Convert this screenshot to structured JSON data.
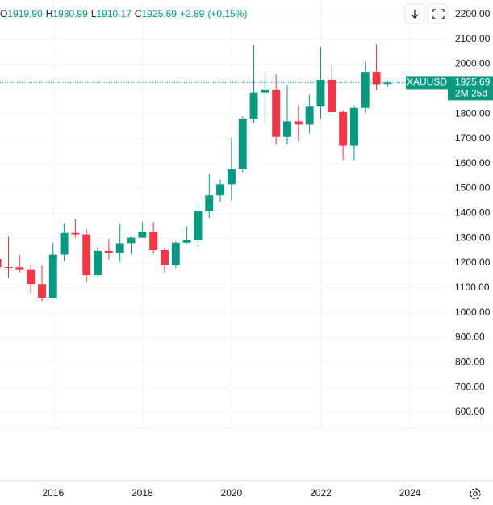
{
  "chart_data": {
    "type": "candlestick",
    "header": {
      "labels": [
        "O",
        "H",
        "L",
        "C"
      ],
      "values": [
        "1919.90",
        "1930.99",
        "1910.17",
        "1925.69"
      ],
      "change": "+2.89",
      "change_pct": "(+0.15%)"
    },
    "symbol": "XAUUSD",
    "last_price": {
      "value": 1925.69,
      "label": "1925.69"
    },
    "countdown": "2M 25d",
    "up_color": "#089981",
    "down_color": "#f23645",
    "grid": true,
    "ylim": [
      538,
      2258
    ],
    "yticks": [
      {
        "value": 600,
        "label": "600.00"
      },
      {
        "value": 700,
        "label": "700.00"
      },
      {
        "value": 800,
        "label": "800.00"
      },
      {
        "value": 900,
        "label": "900.00"
      },
      {
        "value": 1000,
        "label": "1000.00"
      },
      {
        "value": 1100,
        "label": "1100.00"
      },
      {
        "value": 1200,
        "label": "1200.00"
      },
      {
        "value": 1300,
        "label": "1300.00"
      },
      {
        "value": 1400,
        "label": "1400.00"
      },
      {
        "value": 1500,
        "label": "1500.00"
      },
      {
        "value": 1600,
        "label": "1600.00"
      },
      {
        "value": 1700,
        "label": "1700.00"
      },
      {
        "value": 1800,
        "label": "1800.00"
      },
      {
        "value": 1900,
        "label": "1900.00"
      },
      {
        "value": 2000,
        "label": "2000.00"
      },
      {
        "value": 2100,
        "label": "2100.00"
      },
      {
        "value": 2200,
        "label": "2200.00"
      }
    ],
    "xlim": [
      2014.81,
      2024.85
    ],
    "xticks": [
      2016,
      2018,
      2020,
      2022,
      2024
    ],
    "candles": [
      {
        "x": 2014.75,
        "open": 1216,
        "high": 1255,
        "low": 1132,
        "close": 1184
      },
      {
        "x": 2015.0,
        "open": 1184,
        "high": 1307,
        "low": 1142,
        "close": 1183
      },
      {
        "x": 2015.25,
        "open": 1183,
        "high": 1232,
        "low": 1162,
        "close": 1172
      },
      {
        "x": 2015.5,
        "open": 1172,
        "high": 1191,
        "low": 1077,
        "close": 1115
      },
      {
        "x": 2015.75,
        "open": 1115,
        "high": 1191,
        "low": 1046,
        "close": 1060
      },
      {
        "x": 2016.0,
        "open": 1060,
        "high": 1282,
        "low": 1061,
        "close": 1234
      },
      {
        "x": 2016.25,
        "open": 1234,
        "high": 1358,
        "low": 1208,
        "close": 1321
      },
      {
        "x": 2016.5,
        "open": 1321,
        "high": 1375,
        "low": 1302,
        "close": 1315
      },
      {
        "x": 2016.75,
        "open": 1315,
        "high": 1337,
        "low": 1123,
        "close": 1151
      },
      {
        "x": 2017.0,
        "open": 1151,
        "high": 1264,
        "low": 1146,
        "close": 1249
      },
      {
        "x": 2017.25,
        "open": 1249,
        "high": 1296,
        "low": 1214,
        "close": 1242
      },
      {
        "x": 2017.5,
        "open": 1242,
        "high": 1357,
        "low": 1204,
        "close": 1280
      },
      {
        "x": 2017.75,
        "open": 1280,
        "high": 1306,
        "low": 1236,
        "close": 1302
      },
      {
        "x": 2018.0,
        "open": 1302,
        "high": 1366,
        "low": 1302,
        "close": 1325
      },
      {
        "x": 2018.25,
        "open": 1325,
        "high": 1365,
        "low": 1238,
        "close": 1252
      },
      {
        "x": 2018.5,
        "open": 1252,
        "high": 1263,
        "low": 1160,
        "close": 1192
      },
      {
        "x": 2018.75,
        "open": 1192,
        "high": 1287,
        "low": 1180,
        "close": 1282
      },
      {
        "x": 2019.0,
        "open": 1282,
        "high": 1346,
        "low": 1276,
        "close": 1292
      },
      {
        "x": 2019.25,
        "open": 1292,
        "high": 1439,
        "low": 1266,
        "close": 1409
      },
      {
        "x": 2019.5,
        "open": 1409,
        "high": 1557,
        "low": 1381,
        "close": 1472
      },
      {
        "x": 2019.75,
        "open": 1472,
        "high": 1535,
        "low": 1445,
        "close": 1517
      },
      {
        "x": 2020.0,
        "open": 1517,
        "high": 1703,
        "low": 1451,
        "close": 1577
      },
      {
        "x": 2020.25,
        "open": 1577,
        "high": 1789,
        "low": 1566,
        "close": 1781
      },
      {
        "x": 2020.5,
        "open": 1781,
        "high": 2075,
        "low": 1764,
        "close": 1886
      },
      {
        "x": 2020.75,
        "open": 1886,
        "high": 1966,
        "low": 1764,
        "close": 1898
      },
      {
        "x": 2021.0,
        "open": 1898,
        "high": 1959,
        "low": 1676,
        "close": 1707
      },
      {
        "x": 2021.25,
        "open": 1707,
        "high": 1916,
        "low": 1677,
        "close": 1770
      },
      {
        "x": 2021.5,
        "open": 1770,
        "high": 1834,
        "low": 1690,
        "close": 1757
      },
      {
        "x": 2021.75,
        "open": 1757,
        "high": 1877,
        "low": 1721,
        "close": 1829
      },
      {
        "x": 2022.0,
        "open": 1829,
        "high": 2070,
        "low": 1780,
        "close": 1937
      },
      {
        "x": 2022.25,
        "open": 1937,
        "high": 1998,
        "low": 1805,
        "close": 1807
      },
      {
        "x": 2022.5,
        "open": 1807,
        "high": 1814,
        "low": 1615,
        "close": 1672
      },
      {
        "x": 2022.75,
        "open": 1672,
        "high": 1834,
        "low": 1614,
        "close": 1824
      },
      {
        "x": 2023.0,
        "open": 1824,
        "high": 2010,
        "low": 1804,
        "close": 1969
      },
      {
        "x": 2023.25,
        "open": 1969,
        "high": 2079,
        "low": 1893,
        "close": 1919
      },
      {
        "x": 2023.5,
        "open": 1919.9,
        "high": 1930.99,
        "low": 1910.17,
        "close": 1925.69
      }
    ]
  }
}
